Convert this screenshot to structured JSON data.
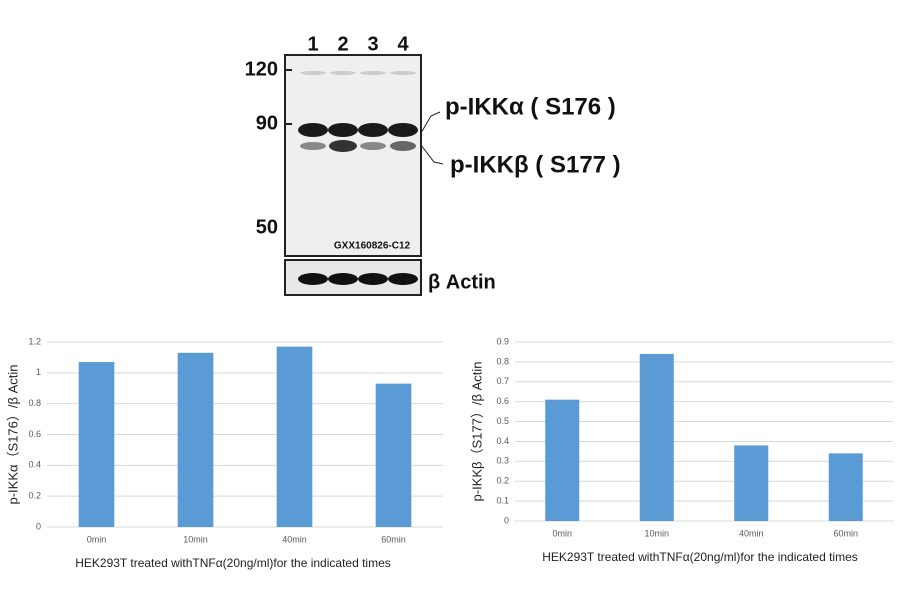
{
  "blot": {
    "lanes": [
      "1",
      "2",
      "3",
      "4"
    ],
    "markers": [
      "120",
      "90",
      "50"
    ],
    "bands": [
      "p-IKKα ( S176 )",
      "p-IKKβ ( S177 )"
    ],
    "code": "GXX160826-C12",
    "loading_control": "β Actin"
  },
  "chart_data": [
    {
      "type": "bar",
      "ylabel": "p-IKKα（S176）/β Actin",
      "xlabel": "HEK293T treated withTNFα(20ng/ml)for the indicated times",
      "categories": [
        "0min",
        "10min",
        "40min",
        "60min"
      ],
      "values": [
        1.07,
        1.13,
        1.17,
        0.93
      ],
      "color": "#5b9bd5",
      "ylim": [
        0,
        1.2
      ],
      "yticks": [
        0,
        0.2,
        0.4,
        0.6,
        0.8,
        1,
        1.2
      ],
      "grid": true
    },
    {
      "type": "bar",
      "ylabel": "p-IKKβ（S177）/β Actin",
      "xlabel": "HEK293T treated withTNFα(20ng/ml)for the indicated times",
      "categories": [
        "0min",
        "10min",
        "40min",
        "60min"
      ],
      "values": [
        0.61,
        0.84,
        0.38,
        0.34
      ],
      "color": "#5b9bd5",
      "ylim": [
        0,
        0.9
      ],
      "yticks": [
        0,
        0.1,
        0.2,
        0.3,
        0.4,
        0.5,
        0.6,
        0.7,
        0.8,
        0.9
      ],
      "grid": true
    }
  ]
}
